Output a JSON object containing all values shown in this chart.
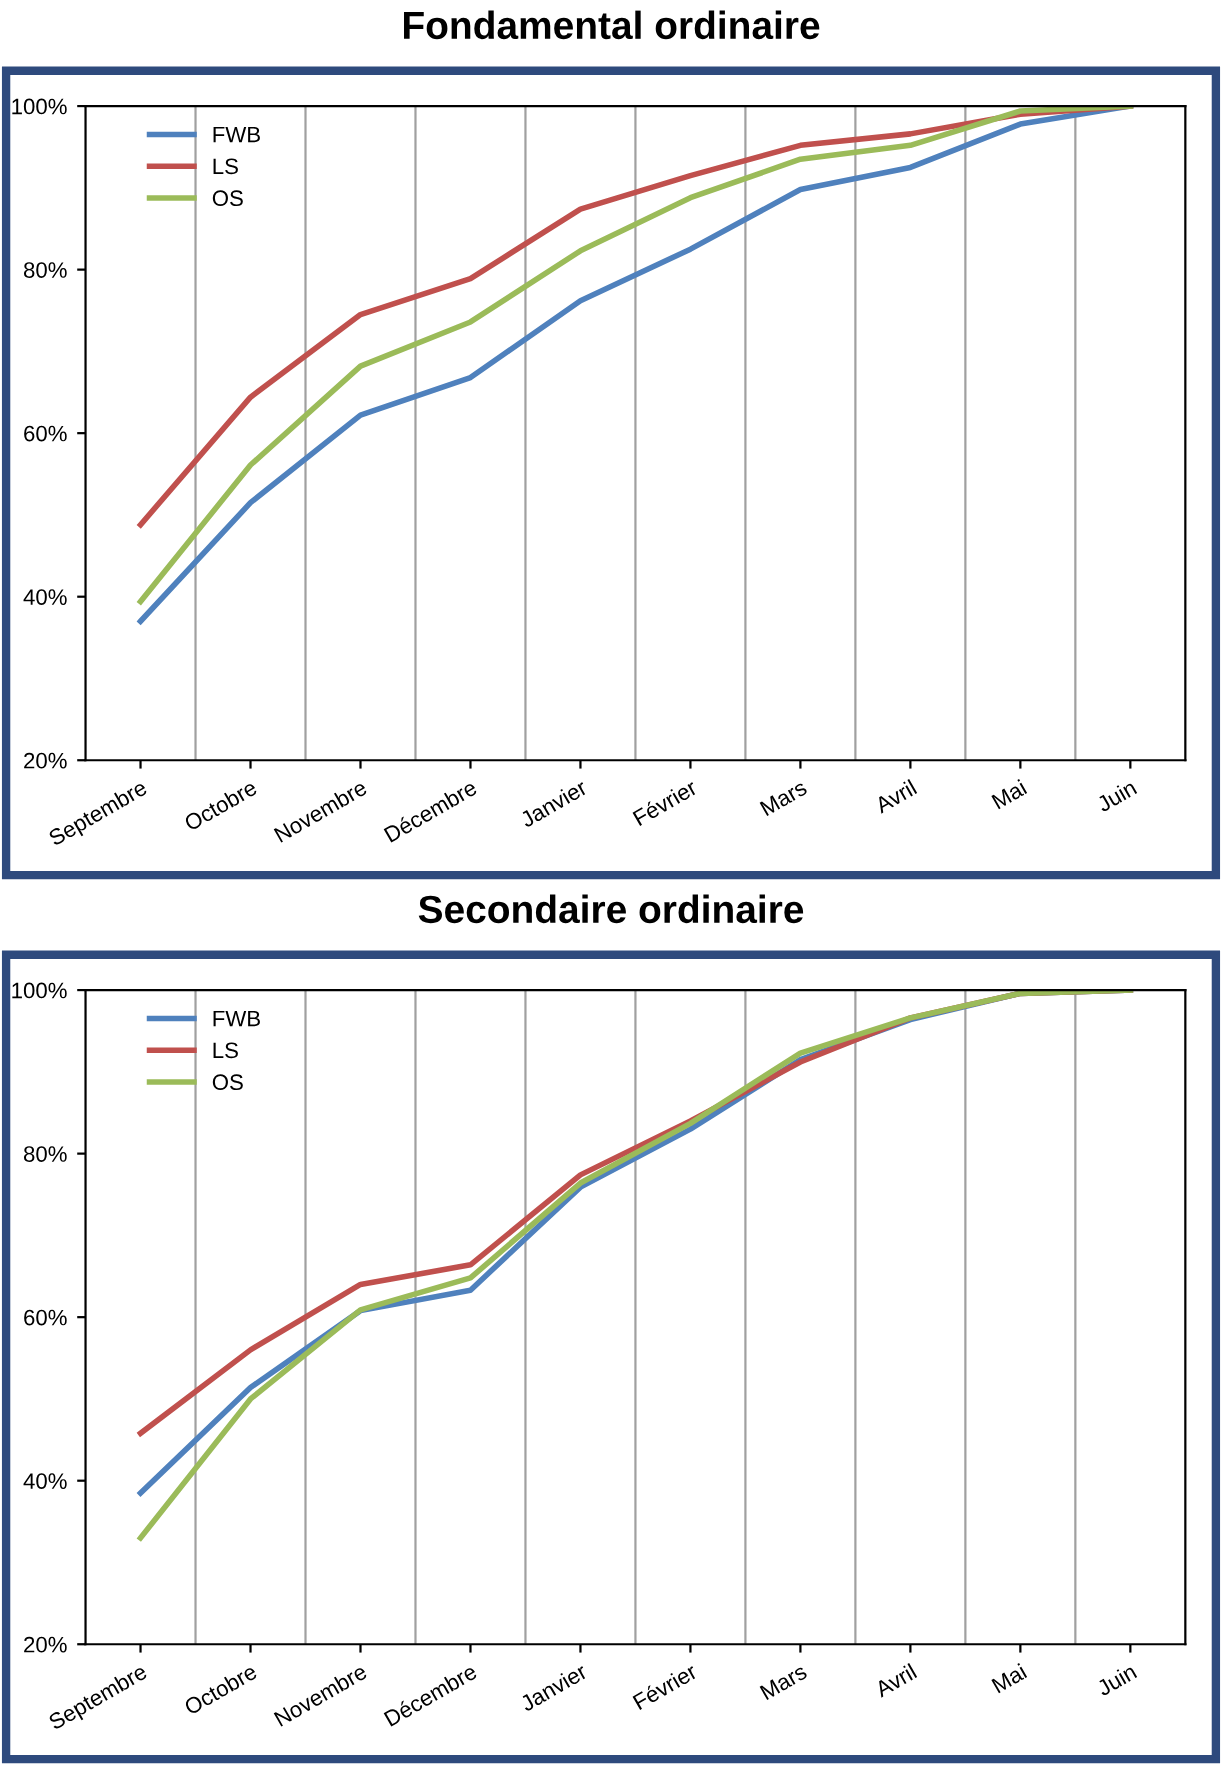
{
  "chart_data": [
    {
      "type": "line",
      "title": "Fondamental ordinaire",
      "categories": [
        "Septembre",
        "Octobre",
        "Novembre",
        "Décembre",
        "Janvier",
        "Février",
        "Mars",
        "Avril",
        "Mai",
        "Juin"
      ],
      "series": [
        {
          "name": "FWB",
          "color": "#4f81bd",
          "values": [
            37,
            51.5,
            62.2,
            66.8,
            76.2,
            82.5,
            89.8,
            92.5,
            97.8,
            100
          ]
        },
        {
          "name": "LS",
          "color": "#c0504d",
          "values": [
            48.8,
            64.4,
            74.5,
            78.9,
            87.4,
            91.5,
            95.2,
            96.6,
            99,
            100
          ]
        },
        {
          "name": "OS",
          "color": "#9bbb59",
          "values": [
            39.4,
            56.1,
            68.2,
            73.6,
            82.3,
            88.8,
            93.5,
            95.2,
            99.4,
            100
          ]
        }
      ],
      "ylim": [
        20,
        100
      ],
      "yticks": [
        {
          "value": 20,
          "label": "20%"
        },
        {
          "value": 40,
          "label": "40%"
        },
        {
          "value": 60,
          "label": "60%"
        },
        {
          "value": 80,
          "label": "80%"
        },
        {
          "value": 100,
          "label": "100%"
        }
      ],
      "grid": "x",
      "legend": "top left",
      "marker": "none",
      "line_style": "solid"
    },
    {
      "type": "line",
      "title": "Secondaire ordinaire",
      "categories": [
        "Septembre",
        "Octobre",
        "Novembre",
        "Décembre",
        "Janvier",
        "Février",
        "Mars",
        "Avril",
        "Mai",
        "Juin"
      ],
      "series": [
        {
          "name": "FWB",
          "color": "#4f81bd",
          "values": [
            38.5,
            51.4,
            60.8,
            63.3,
            75.9,
            83,
            91.5,
            96.4,
            99.6,
            100
          ]
        },
        {
          "name": "LS",
          "color": "#c0504d",
          "values": [
            45.8,
            56,
            64,
            66.4,
            77.4,
            84,
            91.2,
            96.6,
            99.6,
            100
          ]
        },
        {
          "name": "OS",
          "color": "#9bbb59",
          "values": [
            33,
            50,
            60.9,
            64.8,
            76.4,
            83.7,
            92.3,
            96.6,
            99.6,
            100
          ]
        }
      ],
      "ylim": [
        20,
        100
      ],
      "yticks": [
        {
          "value": 20,
          "label": "20%"
        },
        {
          "value": 40,
          "label": "40%"
        },
        {
          "value": 60,
          "label": "60%"
        },
        {
          "value": 80,
          "label": "80%"
        },
        {
          "value": 100,
          "label": "100%"
        }
      ],
      "grid": "x",
      "legend": "top left",
      "marker": "none",
      "line_style": "solid"
    }
  ]
}
